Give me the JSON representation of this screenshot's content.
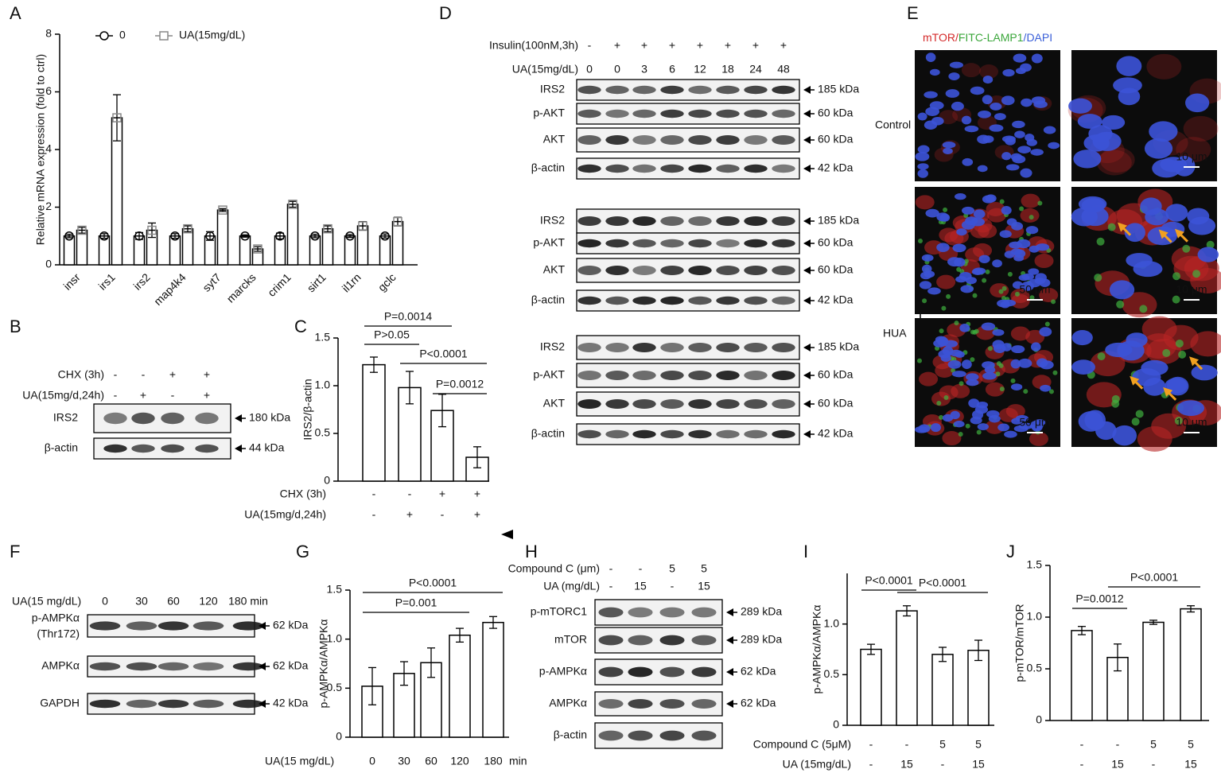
{
  "panels": [
    "A",
    "B",
    "C",
    "D",
    "E",
    "F",
    "G",
    "H",
    "I",
    "J"
  ],
  "chart_data": [
    {
      "type": "bar",
      "y_label": "Relative mRNA expression (fold to ctrl)",
      "categories": [
        "insr",
        "irs1",
        "irs2",
        "map4k4",
        "syt7",
        "marcks",
        "crim1",
        "sirt1",
        "il1rn",
        "gclc"
      ],
      "series": [
        {
          "name": "0",
          "color": "#000000",
          "values": [
            1,
            1,
            1,
            1,
            1,
            1,
            1,
            1,
            1,
            1
          ],
          "errors": [
            0.06,
            0.08,
            0.12,
            0.08,
            0.15,
            0.04,
            0.1,
            0.06,
            0.05,
            0.07
          ]
        },
        {
          "name": "UA(15mg/dL)",
          "color": "#888888",
          "values": [
            1.2,
            5.1,
            1.2,
            1.25,
            1.9,
            0.55,
            2.1,
            1.25,
            1.35,
            1.5
          ],
          "errors": [
            0.1,
            0.8,
            0.25,
            0.1,
            0.05,
            0.08,
            0.1,
            0.1,
            0.15,
            0.15
          ]
        }
      ],
      "ylim": [
        0,
        8
      ],
      "yticks": [
        0,
        2,
        4,
        6,
        8
      ]
    },
    {
      "type": "bar",
      "y_label": "IRS2/β-actin",
      "values": [
        1.22,
        0.98,
        0.74,
        0.25
      ],
      "errors": [
        0.08,
        0.17,
        0.17,
        0.11
      ],
      "color": "#000000",
      "ylim": [
        0,
        1.5
      ],
      "yticks": [
        0,
        0.5,
        {
          "value": 1,
          "label": "1.0"
        },
        1.5
      ],
      "conditions": [
        {
          "label": "CHX (3h)",
          "values": [
            "-",
            "-",
            "+",
            "+"
          ]
        },
        {
          "label": "UA(15mg/d,24h)",
          "values": [
            "-",
            "+",
            "-",
            "+"
          ]
        }
      ],
      "annotations": [
        "P>0.05",
        "P=0.0014",
        "P<0.0001",
        "P=0.0012"
      ]
    },
    {
      "type": "bar",
      "y_label": "p-AMPKα/AMPKα",
      "categories": [
        "0",
        "30",
        "60",
        "120",
        "180"
      ],
      "category_label": "UA(15 mg/dL)",
      "unit": "min",
      "values": [
        0.52,
        0.65,
        0.76,
        1.04,
        1.17
      ],
      "errors": [
        0.19,
        0.12,
        0.15,
        0.07,
        0.06
      ],
      "color": "#000000",
      "ylim": [
        0,
        1.5
      ],
      "yticks": [
        0,
        0.5,
        {
          "value": 1,
          "label": "1.0"
        },
        1.5
      ],
      "annotations": [
        "P=0.001",
        "P<0.0001"
      ]
    },
    {
      "type": "bar",
      "y_label": "p-AMPKα/AMPKα",
      "values": [
        0.75,
        1.13,
        0.7,
        0.74
      ],
      "errors": [
        0.05,
        0.05,
        0.07,
        0.1
      ],
      "color": "#000000",
      "ylim": [
        0,
        1.5
      ],
      "yticks": [
        0,
        0.5,
        {
          "value": 1,
          "label": "1.0"
        }
      ],
      "conditions": [
        {
          "label": "Compound C (5μM)",
          "values": [
            "-",
            "-",
            "5",
            "5"
          ]
        },
        {
          "label": "UA (15mg/dL)",
          "values": [
            "-",
            "15",
            "-",
            "15"
          ]
        }
      ],
      "annotations": [
        "P<0.0001",
        "P<0.0001"
      ]
    },
    {
      "type": "bar",
      "y_label": "p-mTOR/mTOR",
      "values": [
        0.87,
        0.61,
        0.95,
        1.08
      ],
      "errors": [
        0.04,
        0.13,
        0.02,
        0.03
      ],
      "color": "#000000",
      "ylim": [
        0,
        1.5
      ],
      "yticks": [
        0,
        0.5,
        {
          "value": 1,
          "label": "1.0"
        },
        1.5
      ],
      "conditions": [
        {
          "values": [
            "-",
            "-",
            "5",
            "5"
          ]
        },
        {
          "values": [
            "-",
            "15",
            "-",
            "15"
          ]
        }
      ],
      "annotations": [
        "P=0.0012",
        "P<0.0001"
      ]
    }
  ],
  "blots": [
    {
      "headers": [
        {
          "label": "CHX (3h)",
          "values": [
            "-",
            "-",
            "+",
            "+"
          ]
        },
        {
          "label": "UA(15mg/d,24h)",
          "values": [
            "-",
            "+",
            "-",
            "+"
          ]
        }
      ],
      "rows": [
        {
          "label": "IRS2",
          "kda": "180 kDa"
        },
        {
          "label": "β-actin",
          "kda": "44 kDa"
        }
      ]
    },
    {
      "headers": [
        {
          "label": "Insulin(100nM,3h)",
          "values": [
            "-",
            "+",
            "+",
            "+",
            "+",
            "+",
            "+",
            "+"
          ]
        },
        {
          "label": "UA(15mg/dL)",
          "values": [
            "0",
            "0",
            "3",
            "6",
            "12",
            "18",
            "24",
            "48"
          ]
        }
      ],
      "rows": [
        {
          "label": "IRS2",
          "kda": "185 kDa"
        },
        {
          "label": "p-AKT",
          "kda": "60 kDa"
        },
        {
          "label": "AKT",
          "kda": "60 kDa"
        },
        {
          "label": "β-actin",
          "kda": "42 kDa"
        },
        {
          "label": "IRS2",
          "kda": "185 kDa"
        },
        {
          "label": "p-AKT",
          "kda": "60 kDa"
        },
        {
          "label": "AKT",
          "kda": "60 kDa"
        },
        {
          "label": "β-actin",
          "kda": "42 kDa"
        },
        {
          "label": "IRS2",
          "kda": "185 kDa"
        },
        {
          "label": "p-AKT",
          "kda": "60 kDa"
        },
        {
          "label": "AKT",
          "kda": "60 kDa"
        },
        {
          "label": "β-actin",
          "kda": "42 kDa"
        }
      ]
    },
    {
      "headers": [
        {
          "label": "UA(15 mg/dL)",
          "values": [
            "0",
            "30",
            "60",
            "120",
            "180 min"
          ]
        }
      ],
      "rows": [
        {
          "label": "p-AMPKα",
          "sublabel": "(Thr172)",
          "kda": "62 kDa"
        },
        {
          "label": "AMPKα",
          "kda": "62 kDa"
        },
        {
          "label": "GAPDH",
          "kda": "42 kDa"
        }
      ]
    },
    {
      "headers": [
        {
          "label": "Compound C (μm)",
          "values": [
            "-",
            "-",
            "5",
            "5"
          ]
        },
        {
          "label": "UA (mg/dL)",
          "values": [
            "-",
            "15",
            "-",
            "15"
          ]
        }
      ],
      "rows": [
        {
          "label": "p-mTORC1",
          "kda": "289 kDa"
        },
        {
          "label": "mTOR",
          "kda": "289 kDa"
        },
        {
          "label": "p-AMPKα",
          "kda": "62 kDa"
        },
        {
          "label": "AMPKα",
          "kda": "62 kDa"
        },
        {
          "label": "β-actin"
        }
      ]
    }
  ],
  "images": {
    "title": [
      "mTOR",
      "/",
      "FITC-LAMP1",
      "/",
      "DAPI"
    ],
    "row_labels": [
      "Control",
      "HUA"
    ],
    "scale_bars": [
      "10 μm",
      "50 μm",
      "10 μm",
      "50 μm",
      "10 μm"
    ]
  }
}
